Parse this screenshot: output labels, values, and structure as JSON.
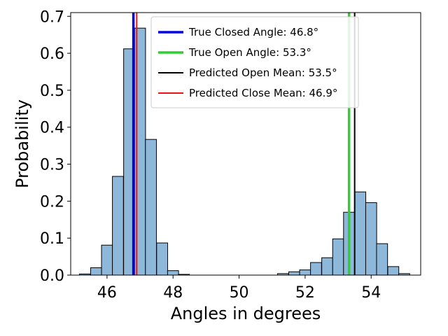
{
  "chart_data": {
    "type": "bar",
    "title": "",
    "xlabel": "Angles in degrees",
    "ylabel": "Probability",
    "xlim": [
      44.9,
      55.5
    ],
    "ylim": [
      0,
      0.71
    ],
    "xticks": [
      46,
      48,
      50,
      52,
      54
    ],
    "yticks": [
      0.0,
      0.1,
      0.2,
      0.3,
      0.4,
      0.5,
      0.6,
      0.7
    ],
    "ytick_labels": [
      "0.0",
      "0.1",
      "0.2",
      "0.3",
      "0.4",
      "0.5",
      "0.6",
      "0.7"
    ],
    "grid": false,
    "legend_position": "top-center",
    "bar_color": "#8db8da",
    "bar_edge_color": "#000000",
    "bin_width": 0.333,
    "bins": [
      {
        "x": 45.33,
        "value": 0.003
      },
      {
        "x": 45.67,
        "value": 0.02
      },
      {
        "x": 46.0,
        "value": 0.081
      },
      {
        "x": 46.33,
        "value": 0.267
      },
      {
        "x": 46.67,
        "value": 0.612
      },
      {
        "x": 47.0,
        "value": 0.668
      },
      {
        "x": 47.33,
        "value": 0.367
      },
      {
        "x": 47.67,
        "value": 0.087
      },
      {
        "x": 48.0,
        "value": 0.012
      },
      {
        "x": 48.33,
        "value": 0.002
      },
      {
        "x": 51.33,
        "value": 0.004
      },
      {
        "x": 51.67,
        "value": 0.009
      },
      {
        "x": 52.0,
        "value": 0.014
      },
      {
        "x": 52.33,
        "value": 0.034
      },
      {
        "x": 52.67,
        "value": 0.047
      },
      {
        "x": 53.0,
        "value": 0.098
      },
      {
        "x": 53.33,
        "value": 0.17
      },
      {
        "x": 53.67,
        "value": 0.225
      },
      {
        "x": 54.0,
        "value": 0.196
      },
      {
        "x": 54.33,
        "value": 0.085
      },
      {
        "x": 54.67,
        "value": 0.023
      },
      {
        "x": 55.0,
        "value": 0.004
      }
    ],
    "lines": [
      {
        "name": "True Closed Angle: 46.8°",
        "x": 46.8,
        "color": "#0000dd",
        "width": 3.5
      },
      {
        "name": "True Open Angle: 53.3°",
        "x": 53.33,
        "color": "#33cc33",
        "width": 3.5
      },
      {
        "name": "Predicted Open Mean: 53.5°",
        "x": 53.5,
        "color": "#000000",
        "width": 2
      },
      {
        "name": "Predicted Close Mean: 46.9°",
        "x": 46.9,
        "color": "#ee1111",
        "width": 2
      }
    ]
  }
}
